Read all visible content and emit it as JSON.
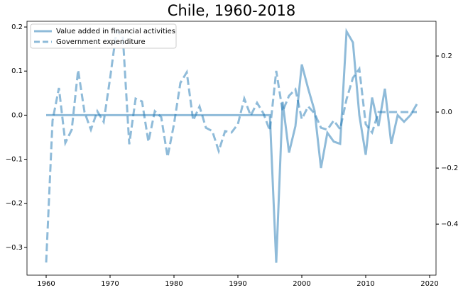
{
  "chart_data": {
    "type": "line",
    "title": "Chile, 1960-2018",
    "x": [
      1960,
      1961,
      1962,
      1963,
      1964,
      1965,
      1966,
      1967,
      1968,
      1969,
      1970,
      1971,
      1972,
      1973,
      1974,
      1975,
      1976,
      1977,
      1978,
      1979,
      1980,
      1981,
      1982,
      1983,
      1984,
      1985,
      1986,
      1987,
      1988,
      1989,
      1990,
      1991,
      1992,
      1993,
      1994,
      1995,
      1996,
      1997,
      1998,
      1999,
      2000,
      2001,
      2002,
      2003,
      2004,
      2005,
      2006,
      2007,
      2008,
      2009,
      2010,
      2011,
      2012,
      2013,
      2014,
      2015,
      2016,
      2017,
      2018
    ],
    "series": [
      {
        "name": "Value added in financial activities",
        "color": "#1f77b4",
        "linestyle": "solid",
        "axis": "y",
        "values": [
          0,
          0,
          0,
          0,
          0,
          0,
          0,
          0,
          0,
          0,
          0,
          0,
          0,
          0,
          0,
          0,
          0,
          0,
          0,
          0,
          0,
          0,
          0,
          0,
          0,
          0,
          0,
          0,
          0,
          0,
          0,
          0,
          0,
          0,
          0,
          0,
          -0.335,
          0.03,
          -0.085,
          -0.025,
          0.115,
          0.06,
          0.01,
          -0.12,
          -0.04,
          -0.06,
          -0.065,
          0.19,
          0.165,
          0.0,
          -0.09,
          0.04,
          -0.025,
          0.06,
          -0.065,
          0.0,
          -0.015,
          0.0,
          0.025
        ]
      },
      {
        "name": "Government expenditure",
        "color": "#1f77b4",
        "linestyle": "dashed",
        "axis": "y2",
        "values": [
          -0.537,
          -0.03,
          0.086,
          -0.11,
          -0.063,
          0.15,
          0.0,
          -0.063,
          0.003,
          -0.035,
          0.12,
          0.29,
          0.27,
          -0.115,
          0.048,
          0.038,
          -0.106,
          0.003,
          -0.018,
          -0.16,
          -0.043,
          0.104,
          0.142,
          -0.03,
          0.02,
          -0.056,
          -0.068,
          -0.139,
          -0.068,
          -0.073,
          -0.043,
          0.048,
          -0.013,
          0.033,
          -0.005,
          -0.066,
          0.147,
          0.003,
          0.058,
          0.081,
          -0.025,
          0.02,
          -0.005,
          -0.056,
          -0.063,
          -0.03,
          -0.061,
          0.046,
          0.122,
          0.154,
          -0.043,
          -0.073,
          0.0,
          0.0,
          0.0,
          0.0,
          0.0,
          0.0,
          0.0
        ]
      }
    ],
    "xlim": [
      1957,
      2021
    ],
    "xticks": [
      1960,
      1970,
      1980,
      1990,
      2000,
      2010,
      2020
    ],
    "ylim": [
      -0.363,
      0.213
    ],
    "yticks": [
      {
        "value": -0.3,
        "label": "−0.3"
      },
      {
        "value": -0.2,
        "label": "−0.2"
      },
      {
        "value": -0.1,
        "label": "−0.1"
      },
      {
        "value": 0.0,
        "label": "0.0"
      },
      0.1,
      0.2
    ],
    "y2lim": [
      -0.582,
      0.324
    ],
    "y2ticks": [
      {
        "value": -0.4,
        "label": "−0.4"
      },
      {
        "value": -0.2,
        "label": "−0.2"
      },
      {
        "value": 0.0,
        "label": "0.0"
      },
      0.2
    ],
    "legend": "upper left"
  }
}
